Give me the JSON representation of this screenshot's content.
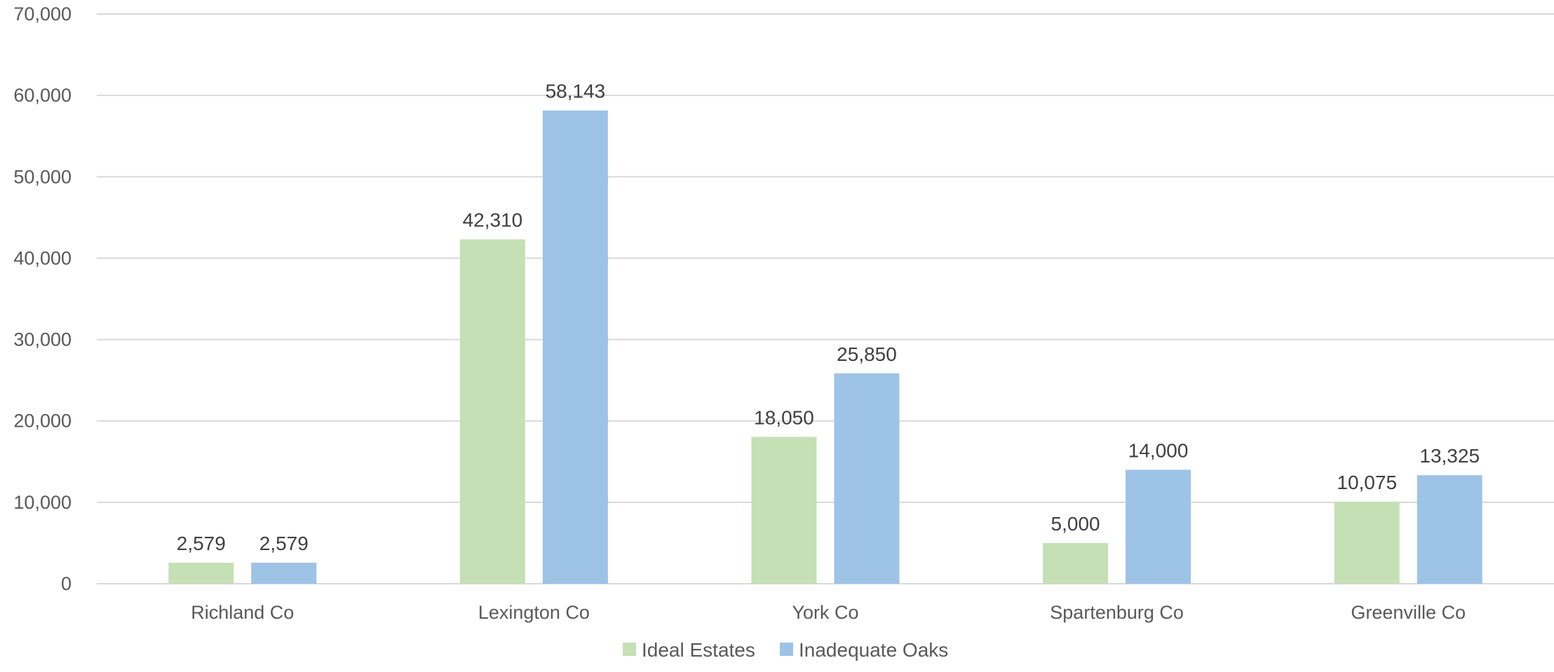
{
  "chart_data": {
    "type": "bar",
    "title": "",
    "xlabel": "",
    "ylabel": "",
    "ylim": [
      0,
      70000
    ],
    "yticks": [
      0,
      10000,
      20000,
      30000,
      40000,
      50000,
      60000,
      70000
    ],
    "ytick_labels": [
      "0",
      "10,000",
      "20,000",
      "30,000",
      "40,000",
      "50,000",
      "60,000",
      "70,000"
    ],
    "grid": true,
    "legend_position": "bottom",
    "categories": [
      "Richland Co",
      "Lexington Co",
      "York Co",
      "Spartenburg Co",
      "Greenville Co"
    ],
    "series": [
      {
        "name": "Ideal Estates",
        "color": "#c5e0b4",
        "values": [
          2579,
          42310,
          18050,
          5000,
          10075
        ],
        "labels": [
          "2,579",
          "42,310",
          "18,050",
          "5,000",
          "10,075"
        ]
      },
      {
        "name": "Inadequate Oaks",
        "color": "#9dc3e6",
        "values": [
          2579,
          58143,
          25850,
          14000,
          13325
        ],
        "labels": [
          "2,579",
          "58,143",
          "25,850",
          "14,000",
          "13,325"
        ]
      }
    ],
    "colors": {
      "gridline": "#d9d9d9",
      "axis_text": "#595959",
      "data_label_text": "#404040"
    }
  }
}
